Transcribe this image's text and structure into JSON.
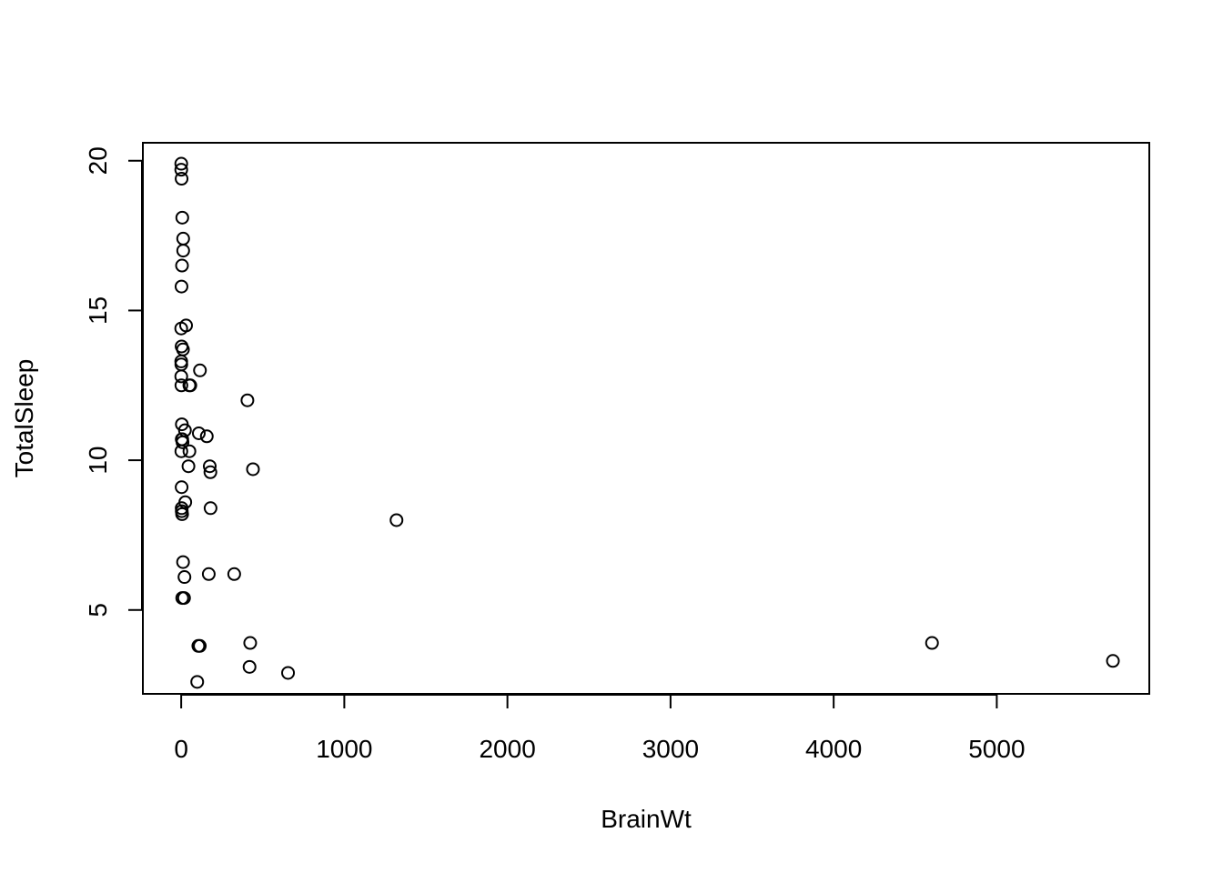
{
  "chart_data": {
    "type": "scatter",
    "title": "",
    "xlabel": "BrainWt",
    "ylabel": "TotalSleep",
    "xlim": [
      -235,
      5935
    ],
    "ylim": [
      2.2,
      20.6
    ],
    "xticks": [
      0,
      1000,
      2000,
      3000,
      4000,
      5000
    ],
    "yticks": [
      5,
      10,
      15,
      20
    ],
    "grid": false,
    "marker": "open-circle",
    "x": [
      5712,
      4603,
      1320,
      655,
      440,
      423,
      419,
      406,
      325,
      180,
      179,
      175,
      169,
      157,
      115,
      98.2,
      108,
      105,
      114,
      50.4,
      56,
      50,
      44.5,
      30,
      25,
      23,
      20,
      17.5,
      12.3,
      12.1,
      11.4,
      10.8,
      6.6,
      6.4,
      6.3,
      5.0,
      4.0,
      3.0,
      2.5,
      3.5,
      2.4,
      1.9,
      1.0,
      0.3,
      0.33,
      0.14,
      0.25,
      0.4,
      0.75,
      2.6,
      1.2,
      8.1,
      5.5,
      3.3
    ],
    "y": [
      3.3,
      3.9,
      8.0,
      2.9,
      9.7,
      3.9,
      3.1,
      12.0,
      6.2,
      8.4,
      9.6,
      9.8,
      6.2,
      10.8,
      13.0,
      2.6,
      10.9,
      3.8,
      3.8,
      10.3,
      12.5,
      12.5,
      9.8,
      14.5,
      8.6,
      11.0,
      6.1,
      5.4,
      17.0,
      17.4,
      6.6,
      13.7,
      18.1,
      10.7,
      5.4,
      16.5,
      11.2,
      8.4,
      13.8,
      8.3,
      19.4,
      15.8,
      10.3,
      19.7,
      19.9,
      14.4,
      13.3,
      12.8,
      13.2,
      9.1,
      12.5,
      10.6,
      8.2,
      10.7
    ]
  }
}
